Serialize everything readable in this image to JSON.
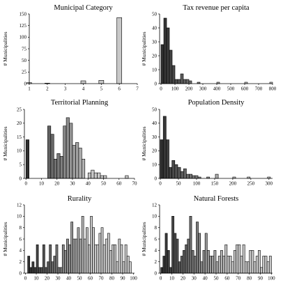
{
  "chart_data": [
    {
      "type": "bar",
      "title": "Municipal Category",
      "ylabel": "# Municipalities",
      "xlim": [
        1,
        7
      ],
      "ylim": [
        0,
        150
      ],
      "xticks": [
        1,
        2,
        3,
        4,
        5,
        6,
        7
      ],
      "yticks": [
        0,
        25,
        50,
        75,
        100,
        125,
        150
      ],
      "bar_color": "#c8c8c8",
      "x": [
        1,
        2,
        3,
        4,
        5,
        6
      ],
      "values": [
        2,
        1,
        0,
        6,
        7,
        142
      ]
    },
    {
      "type": "bar",
      "title": "Tax revenue per capita",
      "ylabel": "# Municipalities",
      "xlim": [
        -10,
        800
      ],
      "ylim": [
        0,
        50
      ],
      "xticks": [
        0,
        100,
        200,
        300,
        400,
        500,
        600,
        700,
        800
      ],
      "yticks": [
        0,
        10,
        20,
        30,
        40,
        50
      ],
      "bar_color_ramp": [
        "#303030",
        "#c8c8c8"
      ],
      "x": [
        0,
        20,
        40,
        60,
        80,
        100,
        120,
        140,
        160,
        180,
        200,
        220,
        240,
        260,
        280,
        300,
        320,
        340,
        360,
        380,
        400,
        420,
        440,
        460,
        480,
        500,
        520,
        540,
        560,
        580,
        600,
        620,
        640,
        660,
        680,
        700,
        720,
        740,
        760,
        780
      ],
      "values": [
        28,
        47,
        40,
        24,
        13,
        3,
        3,
        7,
        3,
        3,
        2,
        0,
        0,
        1,
        0,
        0,
        0,
        0,
        0,
        0,
        1,
        0,
        0,
        0,
        0,
        0,
        0,
        0,
        0,
        0,
        1,
        0,
        0,
        0,
        0,
        0,
        0,
        0,
        0,
        1
      ]
    },
    {
      "type": "bar",
      "title": "Territorial Planning",
      "ylabel": "# Municipalities",
      "xlim": [
        -1,
        70
      ],
      "ylim": [
        0,
        25
      ],
      "xticks": [
        0,
        10,
        20,
        30,
        40,
        50,
        60,
        70
      ],
      "yticks": [
        0,
        5,
        10,
        15,
        20,
        25
      ],
      "bar_color_ramp": [
        "#303030",
        "#c8c8c8"
      ],
      "x": [
        0,
        2,
        4,
        6,
        8,
        10,
        12,
        14,
        16,
        18,
        20,
        22,
        24,
        26,
        28,
        30,
        32,
        34,
        36,
        38,
        40,
        42,
        44,
        46,
        48,
        50,
        52,
        54,
        56,
        58,
        60,
        62,
        64,
        66,
        68
      ],
      "values": [
        14,
        0,
        0,
        0,
        0,
        0,
        0,
        19,
        16,
        7,
        9,
        8,
        19,
        22,
        20,
        12,
        13,
        11,
        7,
        0,
        2,
        3,
        2,
        2,
        1,
        1,
        0,
        0,
        0,
        0,
        0,
        0,
        1,
        0,
        0
      ]
    },
    {
      "type": "bar",
      "title": "Population Density",
      "ylabel": "# Municipalities",
      "xlim": [
        -2,
        310
      ],
      "ylim": [
        0,
        50
      ],
      "xticks": [
        0,
        50,
        100,
        150,
        200,
        250,
        300
      ],
      "yticks": [
        0,
        10,
        20,
        30,
        40,
        50
      ],
      "bar_color_ramp": [
        "#303030",
        "#c8c8c8"
      ],
      "x": [
        0,
        8,
        16,
        24,
        32,
        40,
        48,
        56,
        64,
        72,
        80,
        88,
        96,
        104,
        112,
        120,
        128,
        136,
        144,
        152,
        160,
        168,
        176,
        184,
        192,
        200,
        208,
        216,
        224,
        232,
        240,
        248,
        256,
        264,
        272,
        280,
        288,
        296
      ],
      "values": [
        28,
        45,
        28,
        8,
        13,
        10,
        8,
        5,
        7,
        3,
        3,
        2,
        2,
        1,
        0,
        0,
        1,
        0,
        0,
        3,
        0,
        0,
        0,
        0,
        0,
        1,
        0,
        0,
        0,
        0,
        1,
        0,
        0,
        0,
        0,
        0,
        0,
        1
      ]
    },
    {
      "type": "bar",
      "title": "Rurality",
      "ylabel": "# Municipalities",
      "xlim": [
        -1,
        101
      ],
      "ylim": [
        0,
        12
      ],
      "xticks": [
        0,
        10,
        20,
        30,
        40,
        50,
        60,
        70,
        80,
        90,
        100
      ],
      "yticks": [
        0,
        2,
        4,
        6,
        8,
        10,
        12
      ],
      "bar_color_ramp": [
        "#303030",
        "#c8c8c8"
      ],
      "x": [
        2,
        4,
        6,
        8,
        10,
        12,
        14,
        16,
        18,
        20,
        22,
        24,
        26,
        28,
        30,
        32,
        34,
        36,
        38,
        40,
        42,
        44,
        46,
        48,
        50,
        52,
        54,
        56,
        58,
        60,
        62,
        64,
        66,
        68,
        70,
        72,
        74,
        76,
        78,
        80,
        82,
        84,
        86,
        88,
        90,
        92,
        94,
        96
      ],
      "values": [
        3,
        1,
        2,
        1,
        5,
        1,
        1,
        5,
        1,
        2,
        5,
        2,
        3,
        5,
        1,
        1,
        5,
        4,
        6,
        5,
        9,
        6,
        6,
        8,
        6,
        10,
        6,
        8,
        5,
        10,
        8,
        5,
        5,
        7,
        8,
        5,
        6,
        7,
        4,
        5,
        5,
        2,
        6,
        5,
        2,
        5,
        3,
        2
      ]
    },
    {
      "type": "bar",
      "title": "Natural Forests",
      "ylabel": "# Municipalities",
      "xlim": [
        -1,
        101
      ],
      "ylim": [
        0,
        12
      ],
      "xticks": [
        0,
        10,
        20,
        30,
        40,
        50,
        60,
        70,
        80,
        90,
        100
      ],
      "yticks": [
        0,
        2,
        4,
        6,
        8,
        10,
        12
      ],
      "bar_color_ramp": [
        "#303030",
        "#c8c8c8"
      ],
      "x": [
        0,
        2,
        4,
        6,
        8,
        10,
        12,
        14,
        16,
        18,
        20,
        22,
        24,
        26,
        28,
        30,
        32,
        34,
        36,
        38,
        40,
        42,
        44,
        46,
        48,
        50,
        52,
        54,
        56,
        58,
        60,
        62,
        64,
        66,
        68,
        70,
        72,
        74,
        76,
        78,
        80,
        82,
        84,
        86,
        88,
        90,
        92,
        94,
        96,
        98
      ],
      "values": [
        1,
        3,
        7,
        4,
        1,
        10,
        7,
        6,
        2,
        3,
        4,
        5,
        6,
        10,
        4,
        3,
        9,
        7,
        2,
        4,
        7,
        4,
        3,
        3,
        4,
        2,
        3,
        4,
        3,
        5,
        3,
        3,
        2,
        4,
        5,
        5,
        3,
        5,
        2,
        2,
        4,
        4,
        2,
        3,
        4,
        1,
        3,
        3,
        2,
        3
      ]
    }
  ]
}
